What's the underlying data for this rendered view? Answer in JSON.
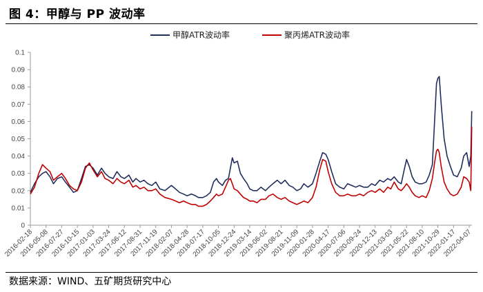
{
  "title": "图 4：甲醇与 PP 波动率",
  "source": "数据来源：WIND、五矿期货研究中心",
  "chart_data": {
    "type": "line",
    "title": "图 4：甲醇与 PP 波动率",
    "ylim": [
      0,
      0.1
    ],
    "y_ticks": [
      "0",
      "0.01",
      "0.02",
      "0.03",
      "0.04",
      "0.05",
      "0.06",
      "0.07",
      "0.08",
      "0.09",
      "0.1"
    ],
    "x_ticks": [
      "2016-02-18",
      "2016-05-08",
      "2016-07-27",
      "2016-10-15",
      "2017-01-03",
      "2017-03-24",
      "2017-06-12",
      "2017-08-31",
      "2017-11-19",
      "2018-02-07",
      "2018-04-28",
      "2018-07-17",
      "2018-10-05",
      "2018-12-24",
      "2019-03-14",
      "2019-06-02",
      "2019-08-21",
      "2019-11-09",
      "2020-01-28",
      "2020-04-17",
      "2020-07-06",
      "2020-09-24",
      "2020-12-13",
      "2021-03-03",
      "2021-05-22",
      "2021-08-10",
      "2021-10-29",
      "2022-01-17",
      "2022-04-07"
    ],
    "legend_position": "top-center",
    "grid": false,
    "series": [
      {
        "name": "甲醇ATR波动率",
        "color": "#1f2d5c",
        "points": [
          [
            "2016-02-18",
            0.019
          ],
          [
            "2016-03-10",
            0.024
          ],
          [
            "2016-04-01",
            0.028
          ],
          [
            "2016-04-20",
            0.03
          ],
          [
            "2016-05-08",
            0.031
          ],
          [
            "2016-05-28",
            0.028
          ],
          [
            "2016-06-15",
            0.024
          ],
          [
            "2016-07-05",
            0.027
          ],
          [
            "2016-07-27",
            0.028
          ],
          [
            "2016-08-15",
            0.025
          ],
          [
            "2016-09-05",
            0.022
          ],
          [
            "2016-09-25",
            0.019
          ],
          [
            "2016-10-15",
            0.02
          ],
          [
            "2016-11-05",
            0.027
          ],
          [
            "2016-11-25",
            0.034
          ],
          [
            "2016-12-15",
            0.035
          ],
          [
            "2017-01-03",
            0.033
          ],
          [
            "2017-01-25",
            0.029
          ],
          [
            "2017-02-15",
            0.033
          ],
          [
            "2017-03-05",
            0.03
          ],
          [
            "2017-03-24",
            0.028
          ],
          [
            "2017-04-15",
            0.027
          ],
          [
            "2017-05-05",
            0.031
          ],
          [
            "2017-05-25",
            0.028
          ],
          [
            "2017-06-12",
            0.027
          ],
          [
            "2017-07-05",
            0.029
          ],
          [
            "2017-07-25",
            0.025
          ],
          [
            "2017-08-10",
            0.027
          ],
          [
            "2017-08-31",
            0.025
          ],
          [
            "2017-09-20",
            0.026
          ],
          [
            "2017-10-10",
            0.024
          ],
          [
            "2017-10-30",
            0.023
          ],
          [
            "2017-11-19",
            0.025
          ],
          [
            "2017-12-10",
            0.021
          ],
          [
            "2018-01-05",
            0.02
          ],
          [
            "2018-02-07",
            0.023
          ],
          [
            "2018-02-28",
            0.021
          ],
          [
            "2018-03-20",
            0.019
          ],
          [
            "2018-04-10",
            0.018
          ],
          [
            "2018-04-28",
            0.017
          ],
          [
            "2018-05-20",
            0.018
          ],
          [
            "2018-06-10",
            0.017
          ],
          [
            "2018-06-25",
            0.016
          ],
          [
            "2018-07-17",
            0.016
          ],
          [
            "2018-08-05",
            0.017
          ],
          [
            "2018-08-25",
            0.019
          ],
          [
            "2018-09-10",
            0.025
          ],
          [
            "2018-09-25",
            0.027
          ],
          [
            "2018-10-05",
            0.025
          ],
          [
            "2018-10-25",
            0.023
          ],
          [
            "2018-11-10",
            0.026
          ],
          [
            "2018-11-25",
            0.027
          ],
          [
            "2018-12-05",
            0.033
          ],
          [
            "2018-12-15",
            0.039
          ],
          [
            "2018-12-24",
            0.036
          ],
          [
            "2019-01-10",
            0.037
          ],
          [
            "2019-01-25",
            0.03
          ],
          [
            "2019-02-10",
            0.027
          ],
          [
            "2019-03-01",
            0.024
          ],
          [
            "2019-03-14",
            0.021
          ],
          [
            "2019-04-01",
            0.02
          ],
          [
            "2019-04-20",
            0.02
          ],
          [
            "2019-05-10",
            0.022
          ],
          [
            "2019-06-02",
            0.02
          ],
          [
            "2019-06-20",
            0.022
          ],
          [
            "2019-07-10",
            0.024
          ],
          [
            "2019-08-01",
            0.026
          ],
          [
            "2019-08-21",
            0.024
          ],
          [
            "2019-09-10",
            0.026
          ],
          [
            "2019-10-01",
            0.023
          ],
          [
            "2019-10-20",
            0.022
          ],
          [
            "2019-11-09",
            0.02
          ],
          [
            "2019-11-28",
            0.021
          ],
          [
            "2019-12-15",
            0.024
          ],
          [
            "2020-01-05",
            0.022
          ],
          [
            "2020-01-28",
            0.024
          ],
          [
            "2020-02-15",
            0.03
          ],
          [
            "2020-03-05",
            0.037
          ],
          [
            "2020-03-20",
            0.042
          ],
          [
            "2020-04-05",
            0.041
          ],
          [
            "2020-04-17",
            0.038
          ],
          [
            "2020-05-05",
            0.031
          ],
          [
            "2020-05-25",
            0.024
          ],
          [
            "2020-06-15",
            0.022
          ],
          [
            "2020-07-06",
            0.021
          ],
          [
            "2020-07-25",
            0.024
          ],
          [
            "2020-08-15",
            0.023
          ],
          [
            "2020-09-05",
            0.022
          ],
          [
            "2020-09-24",
            0.023
          ],
          [
            "2020-10-15",
            0.022
          ],
          [
            "2020-11-05",
            0.022
          ],
          [
            "2020-11-25",
            0.024
          ],
          [
            "2020-12-13",
            0.023
          ],
          [
            "2021-01-05",
            0.026
          ],
          [
            "2021-01-25",
            0.025
          ],
          [
            "2021-02-15",
            0.027
          ],
          [
            "2021-03-03",
            0.026
          ],
          [
            "2021-03-20",
            0.028
          ],
          [
            "2021-04-10",
            0.025
          ],
          [
            "2021-04-25",
            0.024
          ],
          [
            "2021-05-10",
            0.032
          ],
          [
            "2021-05-22",
            0.038
          ],
          [
            "2021-06-05",
            0.034
          ],
          [
            "2021-06-20",
            0.028
          ],
          [
            "2021-07-05",
            0.025
          ],
          [
            "2021-07-25",
            0.024
          ],
          [
            "2021-08-10",
            0.024
          ],
          [
            "2021-08-30",
            0.025
          ],
          [
            "2021-09-15",
            0.029
          ],
          [
            "2021-10-01",
            0.035
          ],
          [
            "2021-10-12",
            0.06
          ],
          [
            "2021-10-22",
            0.082
          ],
          [
            "2021-10-29",
            0.085
          ],
          [
            "2021-11-05",
            0.086
          ],
          [
            "2021-11-15",
            0.07
          ],
          [
            "2021-11-30",
            0.05
          ],
          [
            "2021-12-15",
            0.04
          ],
          [
            "2022-01-01",
            0.034
          ],
          [
            "2022-01-17",
            0.029
          ],
          [
            "2022-02-05",
            0.028
          ],
          [
            "2022-02-25",
            0.033
          ],
          [
            "2022-03-10",
            0.04
          ],
          [
            "2022-03-25",
            0.042
          ],
          [
            "2022-04-07",
            0.034
          ],
          [
            "2022-04-15",
            0.04
          ],
          [
            "2022-04-20",
            0.066
          ]
        ]
      },
      {
        "name": "聚丙烯ATR波动率",
        "color": "#c00000",
        "points": [
          [
            "2016-02-18",
            0.018
          ],
          [
            "2016-03-10",
            0.022
          ],
          [
            "2016-04-01",
            0.03
          ],
          [
            "2016-04-20",
            0.035
          ],
          [
            "2016-05-08",
            0.033
          ],
          [
            "2016-05-28",
            0.031
          ],
          [
            "2016-06-15",
            0.026
          ],
          [
            "2016-07-05",
            0.028
          ],
          [
            "2016-07-27",
            0.03
          ],
          [
            "2016-08-15",
            0.027
          ],
          [
            "2016-09-05",
            0.023
          ],
          [
            "2016-09-25",
            0.021
          ],
          [
            "2016-10-15",
            0.02
          ],
          [
            "2016-11-05",
            0.025
          ],
          [
            "2016-11-25",
            0.033
          ],
          [
            "2016-12-15",
            0.036
          ],
          [
            "2017-01-03",
            0.032
          ],
          [
            "2017-01-25",
            0.028
          ],
          [
            "2017-02-15",
            0.031
          ],
          [
            "2017-03-05",
            0.027
          ],
          [
            "2017-03-24",
            0.026
          ],
          [
            "2017-04-15",
            0.024
          ],
          [
            "2017-05-05",
            0.027
          ],
          [
            "2017-05-25",
            0.025
          ],
          [
            "2017-06-12",
            0.024
          ],
          [
            "2017-07-05",
            0.026
          ],
          [
            "2017-07-25",
            0.022
          ],
          [
            "2017-08-10",
            0.023
          ],
          [
            "2017-08-31",
            0.021
          ],
          [
            "2017-09-20",
            0.022
          ],
          [
            "2017-10-10",
            0.02
          ],
          [
            "2017-10-30",
            0.02
          ],
          [
            "2017-11-19",
            0.021
          ],
          [
            "2017-12-10",
            0.018
          ],
          [
            "2018-01-05",
            0.016
          ],
          [
            "2018-02-07",
            0.015
          ],
          [
            "2018-02-28",
            0.014
          ],
          [
            "2018-03-20",
            0.013
          ],
          [
            "2018-04-10",
            0.014
          ],
          [
            "2018-04-28",
            0.013
          ],
          [
            "2018-05-20",
            0.012
          ],
          [
            "2018-06-10",
            0.012
          ],
          [
            "2018-06-25",
            0.011
          ],
          [
            "2018-07-17",
            0.011
          ],
          [
            "2018-08-05",
            0.012
          ],
          [
            "2018-08-25",
            0.014
          ],
          [
            "2018-09-10",
            0.016
          ],
          [
            "2018-09-25",
            0.018
          ],
          [
            "2018-10-05",
            0.017
          ],
          [
            "2018-10-25",
            0.018
          ],
          [
            "2018-11-10",
            0.022
          ],
          [
            "2018-11-25",
            0.026
          ],
          [
            "2018-12-05",
            0.027
          ],
          [
            "2018-12-15",
            0.024
          ],
          [
            "2018-12-24",
            0.021
          ],
          [
            "2019-01-10",
            0.02
          ],
          [
            "2019-01-25",
            0.018
          ],
          [
            "2019-02-10",
            0.016
          ],
          [
            "2019-03-01",
            0.015
          ],
          [
            "2019-03-14",
            0.014
          ],
          [
            "2019-04-01",
            0.014
          ],
          [
            "2019-04-20",
            0.013
          ],
          [
            "2019-05-10",
            0.015
          ],
          [
            "2019-06-02",
            0.015
          ],
          [
            "2019-06-20",
            0.017
          ],
          [
            "2019-07-10",
            0.018
          ],
          [
            "2019-08-01",
            0.016
          ],
          [
            "2019-08-21",
            0.015
          ],
          [
            "2019-09-10",
            0.016
          ],
          [
            "2019-10-01",
            0.014
          ],
          [
            "2019-10-20",
            0.013
          ],
          [
            "2019-11-09",
            0.012
          ],
          [
            "2019-11-28",
            0.013
          ],
          [
            "2019-12-15",
            0.014
          ],
          [
            "2020-01-05",
            0.013
          ],
          [
            "2020-01-28",
            0.016
          ],
          [
            "2020-02-15",
            0.022
          ],
          [
            "2020-03-05",
            0.032
          ],
          [
            "2020-03-20",
            0.038
          ],
          [
            "2020-04-05",
            0.037
          ],
          [
            "2020-04-17",
            0.031
          ],
          [
            "2020-05-05",
            0.024
          ],
          [
            "2020-05-25",
            0.019
          ],
          [
            "2020-06-15",
            0.017
          ],
          [
            "2020-07-06",
            0.017
          ],
          [
            "2020-07-25",
            0.018
          ],
          [
            "2020-08-15",
            0.017
          ],
          [
            "2020-09-05",
            0.017
          ],
          [
            "2020-09-24",
            0.018
          ],
          [
            "2020-10-15",
            0.017
          ],
          [
            "2020-11-05",
            0.019
          ],
          [
            "2020-11-25",
            0.02
          ],
          [
            "2020-12-13",
            0.019
          ],
          [
            "2021-01-05",
            0.021
          ],
          [
            "2021-01-25",
            0.019
          ],
          [
            "2021-02-15",
            0.022
          ],
          [
            "2021-03-03",
            0.021
          ],
          [
            "2021-03-20",
            0.025
          ],
          [
            "2021-04-10",
            0.021
          ],
          [
            "2021-04-25",
            0.02
          ],
          [
            "2021-05-10",
            0.022
          ],
          [
            "2021-05-22",
            0.024
          ],
          [
            "2021-06-05",
            0.022
          ],
          [
            "2021-06-20",
            0.019
          ],
          [
            "2021-07-05",
            0.017
          ],
          [
            "2021-07-25",
            0.016
          ],
          [
            "2021-08-10",
            0.017
          ],
          [
            "2021-08-30",
            0.016
          ],
          [
            "2021-09-15",
            0.02
          ],
          [
            "2021-10-01",
            0.027
          ],
          [
            "2021-10-12",
            0.036
          ],
          [
            "2021-10-22",
            0.043
          ],
          [
            "2021-10-29",
            0.044
          ],
          [
            "2021-11-05",
            0.042
          ],
          [
            "2021-11-15",
            0.034
          ],
          [
            "2021-11-30",
            0.025
          ],
          [
            "2021-12-15",
            0.021
          ],
          [
            "2022-01-01",
            0.018
          ],
          [
            "2022-01-17",
            0.017
          ],
          [
            "2022-02-05",
            0.018
          ],
          [
            "2022-02-25",
            0.022
          ],
          [
            "2022-03-10",
            0.028
          ],
          [
            "2022-03-25",
            0.027
          ],
          [
            "2022-04-07",
            0.025
          ],
          [
            "2022-04-15",
            0.02
          ],
          [
            "2022-04-20",
            0.057
          ]
        ]
      }
    ]
  }
}
